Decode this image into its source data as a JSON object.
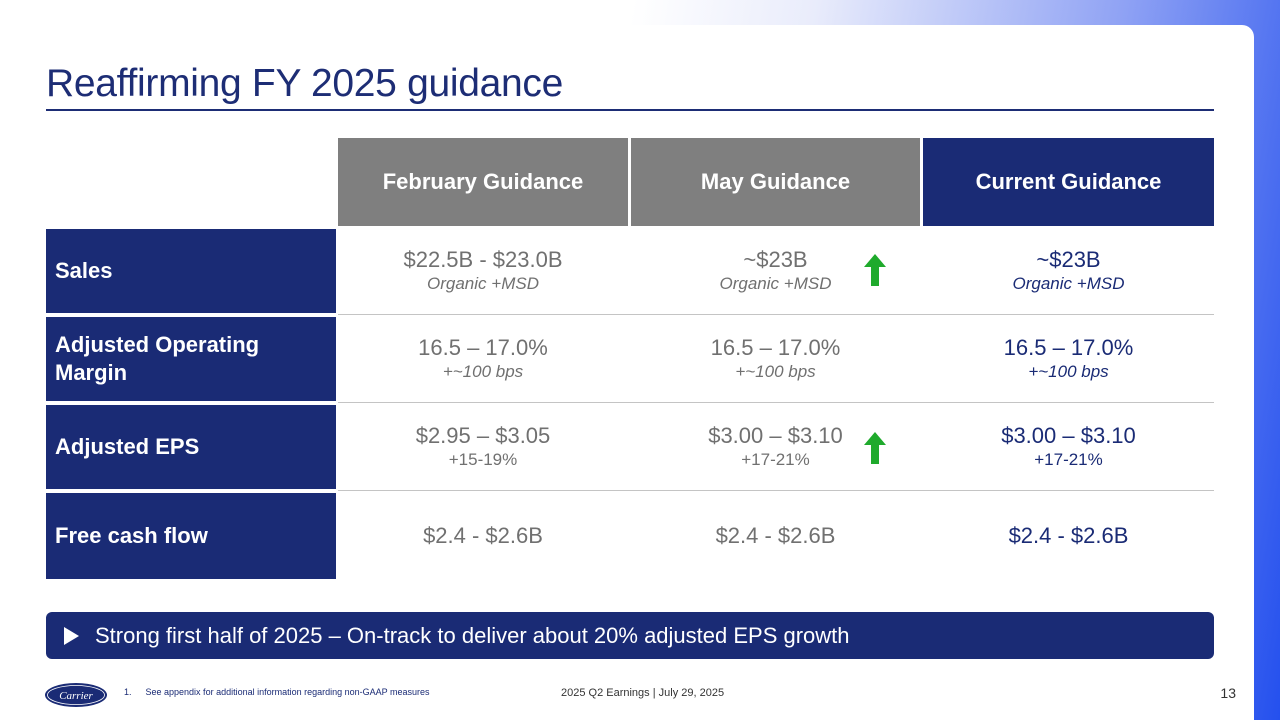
{
  "slide": {
    "title": "Reaffirming FY 2025 guidance",
    "columns": [
      "February Guidance",
      "May Guidance",
      "Current Guidance"
    ],
    "rows": [
      {
        "label": "Sales",
        "february": {
          "main": "$22.5B - $23.0B",
          "sub": "Organic +MSD"
        },
        "may": {
          "main": "~$23B",
          "sub": "Organic +MSD",
          "arrow": "up-arrow-icon"
        },
        "current": {
          "main": "~$23B",
          "sub": "Organic +MSD"
        }
      },
      {
        "label": "Adjusted Operating Margin",
        "february": {
          "main": "16.5 – 17.0%",
          "sub": "+~100 bps"
        },
        "may": {
          "main": "16.5 – 17.0%",
          "sub": "+~100 bps"
        },
        "current": {
          "main": "16.5 – 17.0%",
          "sub": "+~100 bps"
        }
      },
      {
        "label": "Adjusted EPS",
        "february": {
          "main": "$2.95 – $3.05",
          "sub": "+15-19%"
        },
        "may": {
          "main": "$3.00 – $3.10",
          "sub": "+17-21%",
          "arrow": "up-arrow-icon"
        },
        "current": {
          "main": "$3.00 – $3.10",
          "sub": "+17-21%"
        }
      },
      {
        "label": "Free cash flow",
        "february": {
          "main": "$2.4 - $2.6B"
        },
        "may": {
          "main": "$2.4 - $2.6B"
        },
        "current": {
          "main": "$2.4 - $2.6B"
        }
      }
    ],
    "banner": "Strong first half of 2025 – On-track to deliver about 20% adjusted EPS growth"
  },
  "footer": {
    "logo_text": "Carrier",
    "footnote_number": "1.",
    "footnote": "See appendix for additional information regarding non-GAAP measures",
    "center": "2025 Q2 Earnings | July 29, 2025",
    "page_number": "13"
  },
  "colors": {
    "navy": "#1a2b75",
    "gray_header": "#7f7f7f",
    "arrow_green": "#1faa2c",
    "gradient_blue": "#2450ee"
  }
}
